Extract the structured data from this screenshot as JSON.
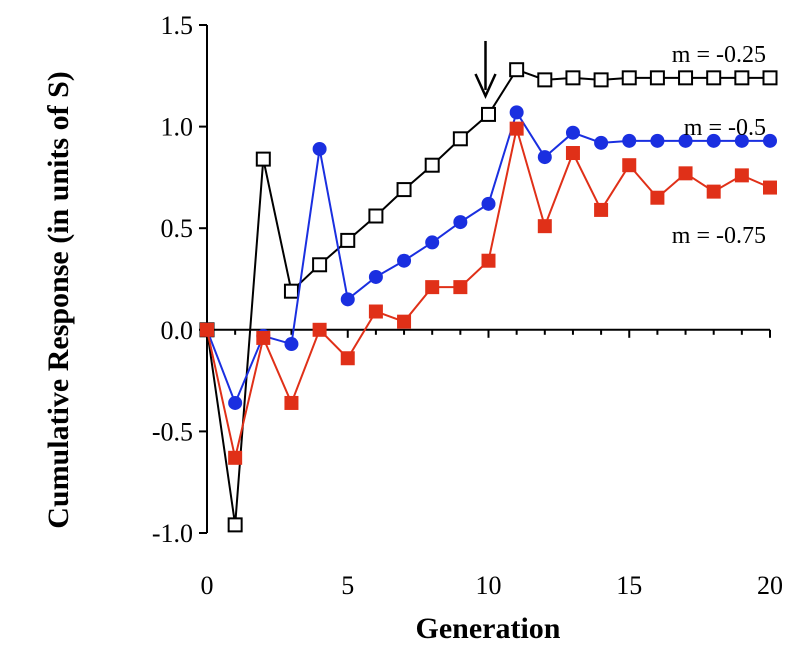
{
  "chart_data": {
    "type": "line",
    "title": "",
    "xlabel": "Generation",
    "ylabel": "Cumulative Response (in units of S)",
    "xlim": [
      0,
      20
    ],
    "ylim": [
      -1.0,
      1.5
    ],
    "xticks": [
      0,
      5,
      10,
      15,
      20
    ],
    "xtick_labels": [
      "0",
      "5",
      "10",
      "15",
      "20"
    ],
    "yticks": [
      -1.0,
      -0.5,
      0.0,
      0.5,
      1.0,
      1.5
    ],
    "ytick_labels": [
      "-1.0",
      "-0.5",
      "0.0",
      "0.5",
      "1.0",
      "1.5"
    ],
    "grid": false,
    "annotations": [
      {
        "type": "arrow",
        "x": 10,
        "y": 1.2,
        "pointing": "down"
      }
    ],
    "x": [
      0,
      1,
      2,
      3,
      4,
      5,
      6,
      7,
      8,
      9,
      10,
      11,
      12,
      13,
      14,
      15,
      16,
      17,
      18,
      19,
      20
    ],
    "series": [
      {
        "name": "m = -0.25",
        "color": "#000000",
        "marker": "open-square",
        "values": [
          0.0,
          -0.96,
          0.84,
          0.19,
          0.32,
          0.44,
          0.56,
          0.69,
          0.81,
          0.94,
          1.06,
          1.28,
          1.23,
          1.24,
          1.23,
          1.24,
          1.24,
          1.24,
          1.24,
          1.24,
          1.24
        ]
      },
      {
        "name": "m = -0.5",
        "color": "#1a2fe0",
        "marker": "filled-circle",
        "values": [
          0.0,
          -0.36,
          -0.03,
          -0.07,
          0.89,
          0.15,
          0.26,
          0.34,
          0.43,
          0.53,
          0.62,
          1.07,
          0.85,
          0.97,
          0.92,
          0.93,
          0.93,
          0.93,
          0.93,
          0.93,
          0.93
        ]
      },
      {
        "name": "m = -0.75",
        "color": "#e03018",
        "marker": "filled-square",
        "values": [
          0.0,
          -0.63,
          -0.04,
          -0.36,
          0.0,
          -0.14,
          0.09,
          0.04,
          0.21,
          0.21,
          0.34,
          0.99,
          0.51,
          0.87,
          0.59,
          0.81,
          0.65,
          0.77,
          0.68,
          0.76,
          0.7
        ]
      }
    ]
  }
}
